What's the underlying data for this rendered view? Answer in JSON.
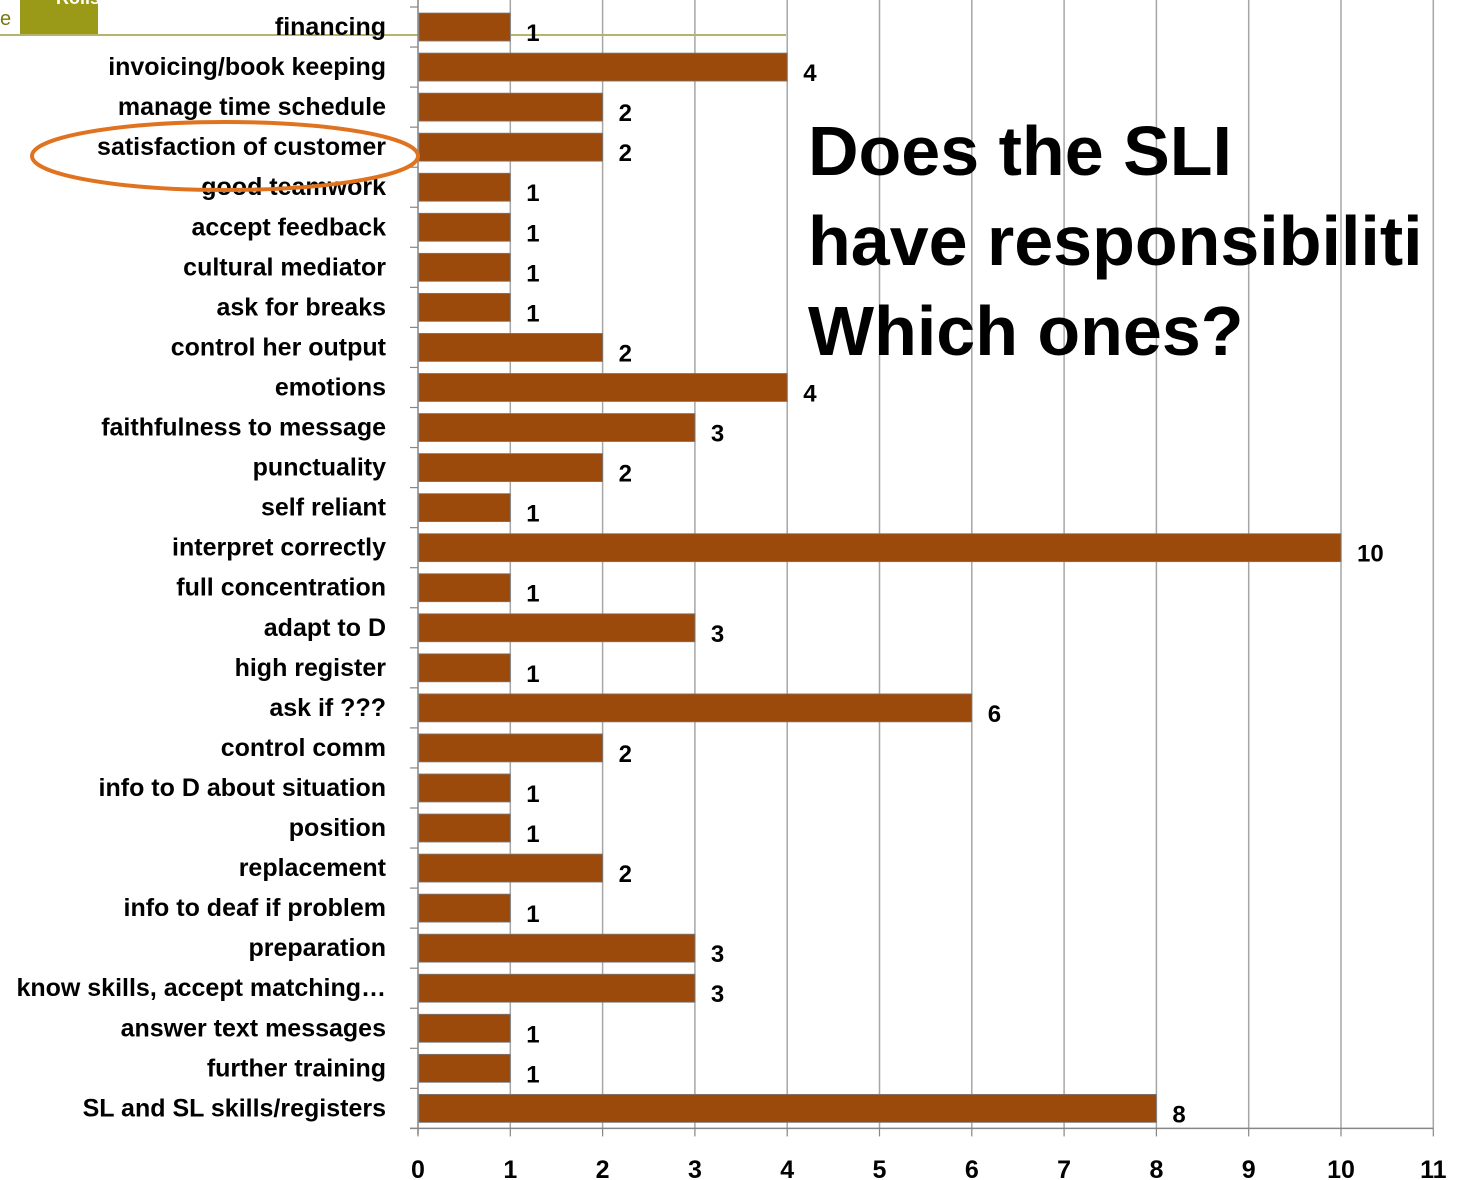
{
  "slide": {
    "question_lines": [
      "Does the SLI",
      "have responsibiliti",
      "Which ones?"
    ],
    "logo_letter": "e",
    "logo_top_text": "Rolls"
  },
  "colors": {
    "bar": "#9c4a0c",
    "grid": "#a6a6a6",
    "highlight_ellipse": "#e0731f",
    "logo_green": "#9a9a18"
  },
  "chart_data": {
    "type": "bar",
    "orientation": "horizontal",
    "title": "",
    "xlabel": "",
    "ylabel": "",
    "xlim": [
      0,
      11
    ],
    "xticks": [
      0,
      1,
      2,
      3,
      4,
      5,
      6,
      7,
      8,
      9,
      10,
      11
    ],
    "grid": true,
    "categories": [
      "financing",
      "invoicing/book keeping",
      "manage time schedule",
      "satisfaction of customer",
      "good teamwork",
      "accept feedback",
      "cultural mediator",
      "ask for breaks",
      "control her output",
      "emotions",
      "faithfulness to message",
      "punctuality",
      "self reliant",
      "interpret correctly",
      "full concentration",
      "adapt to D",
      "high register",
      "ask if ???",
      "control comm",
      "info to D about situation",
      "position",
      "replacement",
      "info to deaf if problem",
      "preparation",
      "know skills, accept matching…",
      "answer text messages",
      "further training",
      "SL and SL skills/registers"
    ],
    "values": [
      1,
      4,
      2,
      2,
      1,
      1,
      1,
      1,
      2,
      4,
      3,
      2,
      1,
      10,
      1,
      3,
      1,
      6,
      2,
      1,
      1,
      2,
      1,
      3,
      3,
      1,
      1,
      8
    ],
    "highlighted_category": "satisfaction of customer"
  }
}
